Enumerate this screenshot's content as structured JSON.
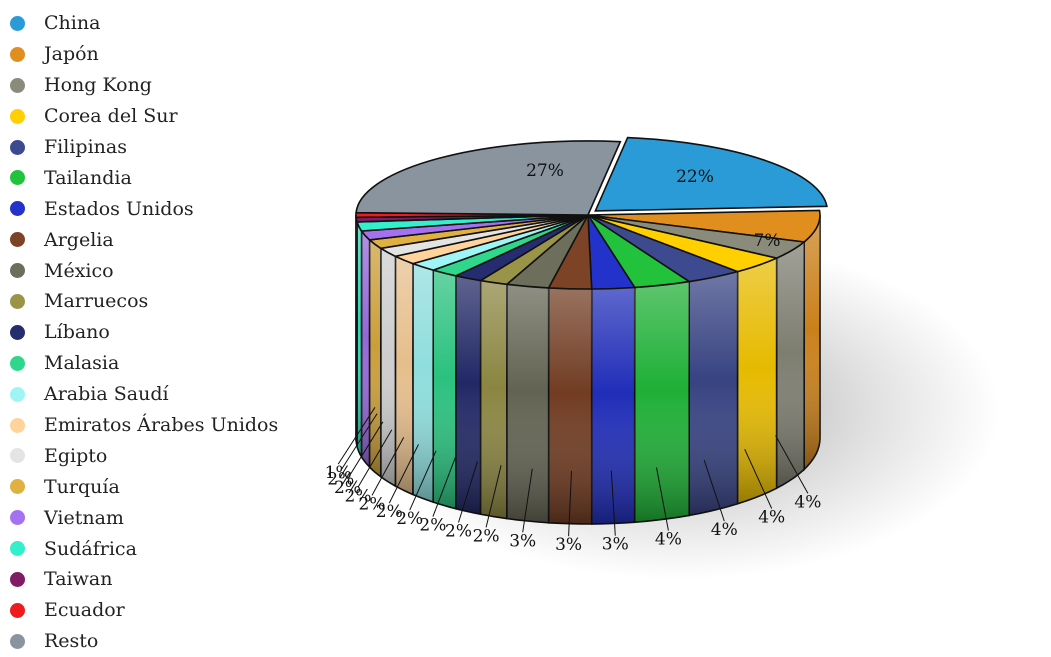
{
  "chart_data": {
    "type": "pie",
    "title": "",
    "legend_position": "left",
    "slices": [
      {
        "name": "China",
        "value": 22,
        "label": "22%",
        "color": "#2a9bd6"
      },
      {
        "name": "Japón",
        "value": 7,
        "label": "7%",
        "color": "#e08e1e"
      },
      {
        "name": "Hong Kong",
        "value": 4,
        "label": "4%",
        "color": "#8b8b7c"
      },
      {
        "name": "Corea del Sur",
        "value": 4,
        "label": "4%",
        "color": "#ffcf00"
      },
      {
        "name": "Filipinas",
        "value": 4,
        "label": "4%",
        "color": "#3d4a90"
      },
      {
        "name": "Tailandia",
        "value": 4,
        "label": "4%",
        "color": "#22c23c"
      },
      {
        "name": "Estados Unidos",
        "value": 3,
        "label": "3%",
        "color": "#2432cc"
      },
      {
        "name": "Argelia",
        "value": 3,
        "label": "3%",
        "color": "#7d4326"
      },
      {
        "name": "México",
        "value": 3,
        "label": "3%",
        "color": "#6e6e5c"
      },
      {
        "name": "Marruecos",
        "value": 2,
        "label": "2%",
        "color": "#9a9448"
      },
      {
        "name": "Líbano",
        "value": 2,
        "label": "2%",
        "color": "#252c70"
      },
      {
        "name": "Malasia",
        "value": 2,
        "label": "2%",
        "color": "#2fd68c"
      },
      {
        "name": "Arabia Saudí",
        "value": 2,
        "label": "2%",
        "color": "#9ff5f5"
      },
      {
        "name": "Emiratos Árabes Unidos",
        "value": 2,
        "label": "2%",
        "color": "#ffd39b"
      },
      {
        "name": "Egipto",
        "value": 2,
        "label": "2%",
        "color": "#e4e4e4"
      },
      {
        "name": "Turquía",
        "value": 2,
        "label": "2%",
        "color": "#e0b040"
      },
      {
        "name": "Vietnam",
        "value": 2,
        "label": "2%",
        "color": "#a472f0"
      },
      {
        "name": "Sudáfrica",
        "value": 2,
        "label": "2%",
        "color": "#33f0cc"
      },
      {
        "name": "Taiwan",
        "value": 1,
        "label": "1%",
        "color": "#7f1c63"
      },
      {
        "name": "Ecuador",
        "value": 1,
        "label": "",
        "color": "#ee1c1c"
      },
      {
        "name": "Resto",
        "value": 27,
        "label": "27%",
        "color": "#8a949e"
      }
    ]
  }
}
